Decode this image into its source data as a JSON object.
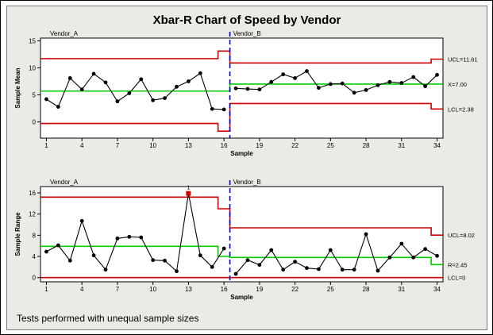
{
  "title": "Xbar-R Chart of Speed by Vendor",
  "footnote": "Tests performed with unequal sample sizes",
  "chart_data": [
    {
      "type": "line",
      "name": "xbar-chart",
      "ylabel": "Sample Mean",
      "xlabel": "Sample",
      "ylim": [
        -3,
        15.5
      ],
      "xlim": [
        0.5,
        34.5
      ],
      "yticks": [
        "15",
        "10",
        "5",
        "0"
      ],
      "ytick_values": [
        15,
        10,
        5,
        0
      ],
      "xticks": [
        "1",
        "4",
        "7",
        "10",
        "13",
        "16",
        "19",
        "22",
        "25",
        "28",
        "31",
        "34"
      ],
      "xtick_values": [
        1,
        4,
        7,
        10,
        13,
        16,
        19,
        22,
        25,
        28,
        31,
        34
      ],
      "stage_labels": [
        "Vendor_A",
        "Vendor_B"
      ],
      "stage_boundary": 16.5,
      "x": [
        1,
        2,
        3,
        4,
        5,
        6,
        7,
        8,
        9,
        10,
        11,
        12,
        13,
        14,
        15,
        16,
        17,
        18,
        19,
        20,
        21,
        22,
        23,
        24,
        25,
        26,
        27,
        28,
        29,
        30,
        31,
        32,
        33,
        34
      ],
      "values": [
        4.2,
        2.8,
        8.1,
        6.0,
        8.9,
        7.3,
        3.8,
        5.3,
        7.9,
        4.0,
        4.4,
        6.5,
        7.5,
        9.0,
        2.4,
        2.3,
        6.2,
        6.1,
        6.0,
        7.4,
        8.8,
        8.1,
        9.4,
        6.3,
        7.0,
        7.1,
        5.4,
        5.9,
        6.8,
        7.4,
        7.2,
        8.3,
        6.6,
        8.7
      ],
      "center_line": {
        "label": "X=7.00",
        "segments": [
          [
            0.5,
            16.5,
            5.7
          ],
          [
            16.5,
            34.5,
            7.0
          ]
        ]
      },
      "ucl": {
        "label": "UCL=11.61",
        "segments": [
          [
            0.5,
            15.5,
            11.7
          ],
          [
            15.5,
            16.5,
            13.1
          ],
          [
            16.5,
            33.5,
            10.9
          ],
          [
            33.5,
            34.5,
            11.61
          ]
        ]
      },
      "lcl": {
        "label": "LCL=2.38",
        "segments": [
          [
            0.5,
            15.5,
            -0.3
          ],
          [
            15.5,
            16.5,
            -1.7
          ],
          [
            16.5,
            33.5,
            3.4
          ],
          [
            33.5,
            34.5,
            2.38
          ]
        ]
      },
      "colors": {
        "data": "#000000",
        "limits": "#cc0000",
        "center": "#00cc00",
        "stage": "#0000cc"
      }
    },
    {
      "type": "line",
      "name": "range-chart",
      "ylabel": "Sample Range",
      "xlabel": "Sample",
      "ylim": [
        -0.8,
        17.2
      ],
      "xlim": [
        0.5,
        34.5
      ],
      "yticks": [
        "16",
        "12",
        "8",
        "4",
        "0"
      ],
      "ytick_values": [
        16,
        12,
        8,
        4,
        0
      ],
      "xticks": [
        "1",
        "4",
        "7",
        "10",
        "13",
        "16",
        "19",
        "22",
        "25",
        "28",
        "31",
        "34"
      ],
      "xtick_values": [
        1,
        4,
        7,
        10,
        13,
        16,
        19,
        22,
        25,
        28,
        31,
        34
      ],
      "stage_labels": [
        "Vendor_A",
        "Vendor_B"
      ],
      "stage_boundary": 16.5,
      "x": [
        1,
        2,
        3,
        4,
        5,
        6,
        7,
        8,
        9,
        10,
        11,
        12,
        13,
        14,
        15,
        16,
        17,
        18,
        19,
        20,
        21,
        22,
        23,
        24,
        25,
        26,
        27,
        28,
        29,
        30,
        31,
        32,
        33,
        34
      ],
      "values": [
        4.9,
        6.1,
        3.2,
        10.7,
        4.2,
        1.5,
        7.4,
        7.7,
        7.6,
        3.3,
        3.2,
        1.2,
        15.9,
        4.2,
        2.0,
        5.5,
        0.7,
        3.3,
        2.4,
        5.2,
        1.5,
        3.0,
        1.8,
        1.6,
        5.2,
        1.5,
        1.5,
        8.2,
        1.3,
        3.8,
        6.4,
        3.8,
        5.4,
        4.1
      ],
      "out_of_control": [
        {
          "x": 13,
          "label": "1"
        }
      ],
      "center_line": {
        "label": "R=2.45",
        "segments": [
          [
            0.5,
            15.5,
            5.9
          ],
          [
            15.5,
            16.5,
            4.0
          ],
          [
            16.5,
            33.5,
            3.8
          ],
          [
            33.5,
            34.5,
            2.45
          ]
        ]
      },
      "ucl": {
        "label": "UCL=8.02",
        "segments": [
          [
            0.5,
            15.5,
            15.2
          ],
          [
            15.5,
            16.5,
            13.0
          ],
          [
            16.5,
            33.5,
            9.4
          ],
          [
            33.5,
            34.5,
            8.02
          ]
        ]
      },
      "lcl": {
        "label": "LCL=0",
        "segments": [
          [
            0.5,
            34.5,
            0
          ]
        ]
      },
      "colors": {
        "data": "#000000",
        "limits": "#cc0000",
        "center": "#00cc00",
        "stage": "#0000cc",
        "flag": "#cc0000"
      }
    }
  ]
}
